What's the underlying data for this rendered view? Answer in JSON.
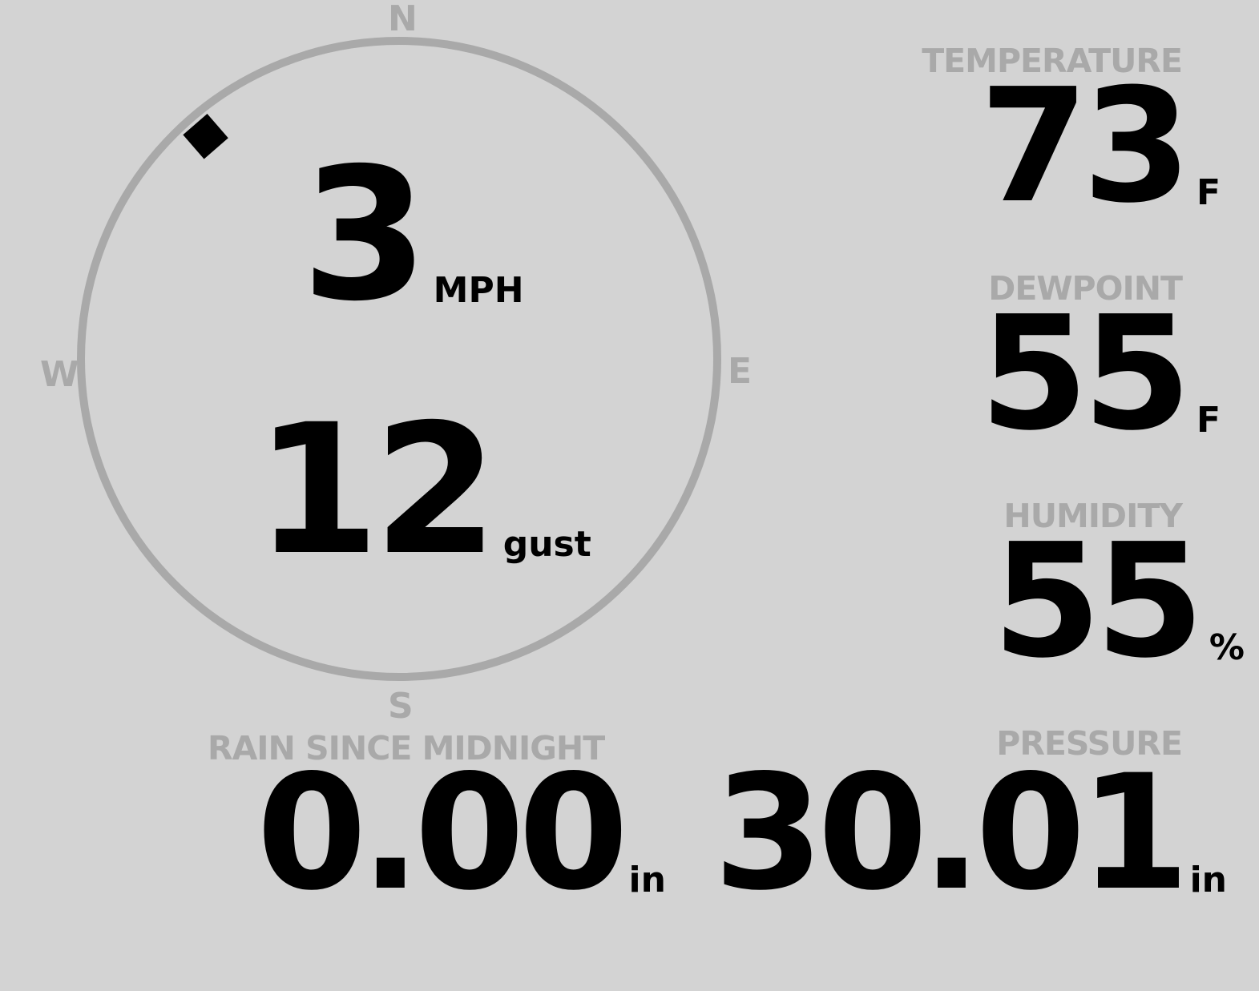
{
  "wind": {
    "speed": "3",
    "speed_unit": "MPH",
    "gust": "12",
    "gust_unit": "gust",
    "direction_deg": 319,
    "cardinals": {
      "n": "N",
      "e": "E",
      "s": "S",
      "w": "W"
    }
  },
  "temperature": {
    "label": "TEMPERATURE",
    "value": "73",
    "unit": "F"
  },
  "dewpoint": {
    "label": "DEWPOINT",
    "value": "55",
    "unit": "F"
  },
  "humidity": {
    "label": "HUMIDITY",
    "value": "55",
    "unit": "%"
  },
  "rain": {
    "label": "RAIN SINCE MIDNIGHT",
    "value": "0.00",
    "unit": "in"
  },
  "pressure": {
    "label": "PRESSURE",
    "value": "30.01",
    "unit": "in"
  },
  "colors": {
    "background": "#d3d3d3",
    "dial": "#a9a9a9",
    "text": "#000000",
    "label": "#a9a9a9"
  }
}
